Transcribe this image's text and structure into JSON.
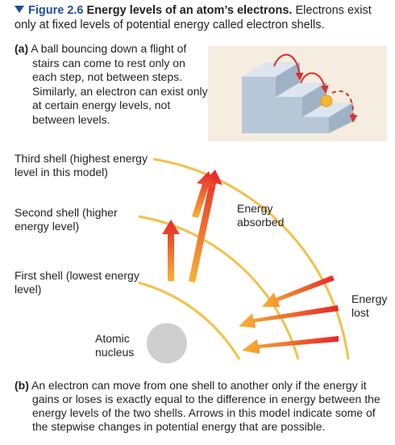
{
  "caption": {
    "figure_label": "Figure 2.6",
    "title": "Energy levels of an atom’s electrons.",
    "text": "Electrons exist only at fixed levels of potential energy called electron shells."
  },
  "part_a": {
    "label": "(a)",
    "text": "A ball bouncing down a flight of stairs can come to rest only on each step, not between steps. Similarly, an electron can exist only at certain energy levels, not between levels."
  },
  "shells": {
    "third": "Third shell (highest energy level in this model)",
    "second": "Second shell (higher energy level)",
    "first": "First shell (lowest energy level)"
  },
  "labels": {
    "energy_absorbed": "Energy absorbed",
    "energy_lost": "Energy lost",
    "atomic_nucleus": "Atomic nucleus"
  },
  "part_b": {
    "label": "(b)",
    "text": "An electron can move from one shell to another only if the energy it gains or loses is exactly equal to the difference in energy between the energy levels of the two shells. Arrows in this model indicate some of the stepwise changes in potential energy that are possible."
  },
  "colors": {
    "shell": "#f2c14a",
    "arrow_red": "#e8262a",
    "arrow_orange": "#f6a632",
    "nucleus": "#cfcfcf",
    "figure_blue": "#1f4e9c",
    "stairs_bg": "#f4ede0"
  }
}
